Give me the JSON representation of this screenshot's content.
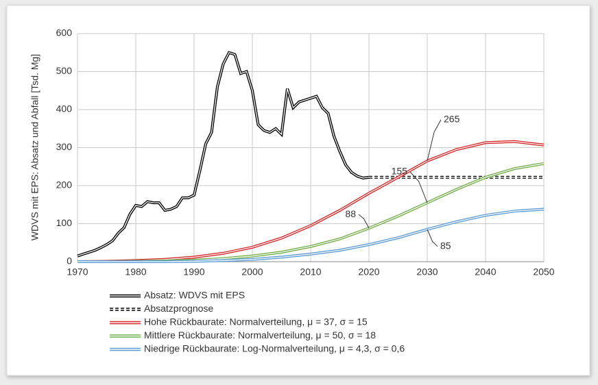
{
  "chart_data": {
    "type": "line",
    "y_label": "WDVS mit EPS: Absatz und Abfall [Tsd. Mg]",
    "xlim": [
      1970,
      2050
    ],
    "xticks": [
      1970,
      1980,
      1990,
      2000,
      2010,
      2020,
      2030,
      2040,
      2050
    ],
    "ylim": [
      0,
      600
    ],
    "yticks": [
      0,
      100,
      200,
      300,
      400,
      500,
      600
    ],
    "grid": true,
    "series": [
      {
        "name": "Absatz: WDVS mit EPS",
        "color": "#000000",
        "style": "solid",
        "x": [
          1970,
          1971,
          1972,
          1973,
          1974,
          1975,
          1976,
          1977,
          1978,
          1979,
          1980,
          1981,
          1982,
          1983,
          1984,
          1985,
          1986,
          1987,
          1988,
          1989,
          1990,
          1991,
          1992,
          1993,
          1994,
          1995,
          1996,
          1997,
          1998,
          1999,
          2000,
          2001,
          2002,
          2003,
          2004,
          2005,
          2006,
          2007,
          2008,
          2009,
          2010,
          2011,
          2012,
          2013,
          2014,
          2015,
          2016,
          2017,
          2018,
          2019,
          2020
        ],
        "values": [
          15,
          20,
          25,
          30,
          37,
          45,
          55,
          75,
          90,
          125,
          148,
          145,
          158,
          155,
          155,
          135,
          138,
          145,
          168,
          168,
          175,
          240,
          310,
          340,
          460,
          520,
          550,
          545,
          495,
          500,
          450,
          360,
          345,
          340,
          350,
          335,
          455,
          405,
          420,
          425,
          430,
          435,
          405,
          390,
          330,
          290,
          255,
          235,
          225,
          220,
          222
        ]
      },
      {
        "name": "Absatzprognose",
        "color": "#000000",
        "style": "dashed",
        "x": [
          2020,
          2050
        ],
        "values": [
          222,
          222
        ]
      },
      {
        "name": "Hohe Rückbaurate: Normalverteilung, μ = 37, σ = 15",
        "color": "#d62728",
        "style": "solid",
        "x": [
          1970,
          1975,
          1980,
          1985,
          1990,
          1995,
          2000,
          2005,
          2010,
          2015,
          2020,
          2025,
          2030,
          2035,
          2040,
          2045,
          2050
        ],
        "values": [
          0,
          1,
          3,
          6,
          12,
          22,
          38,
          62,
          95,
          135,
          180,
          222,
          265,
          295,
          313,
          316,
          307
        ]
      },
      {
        "name": "Mittlere Rückbaurate: Normalverteilung, μ = 50, σ = 18",
        "color": "#70ad47",
        "style": "solid",
        "x": [
          1970,
          1975,
          1980,
          1985,
          1990,
          1995,
          2000,
          2005,
          2010,
          2015,
          2020,
          2025,
          2030,
          2035,
          2040,
          2045,
          2050
        ],
        "values": [
          0,
          0,
          1,
          2,
          4,
          8,
          15,
          25,
          40,
          60,
          88,
          120,
          155,
          190,
          222,
          245,
          258
        ]
      },
      {
        "name": "Niedrige Rückbaurate: Log-Normalverteilung, μ = 4,3, σ = 0,6",
        "color": "#5b9bd5",
        "style": "solid",
        "x": [
          1970,
          1975,
          1980,
          1985,
          1990,
          1995,
          2000,
          2005,
          2010,
          2015,
          2020,
          2025,
          2030,
          2035,
          2040,
          2045,
          2050
        ],
        "values": [
          0,
          0,
          0,
          0,
          1,
          3,
          6,
          12,
          20,
          30,
          45,
          63,
          85,
          105,
          122,
          133,
          138
        ]
      }
    ],
    "annotations": [
      {
        "label": "265",
        "series": 2,
        "x": 2030
      },
      {
        "label": "155",
        "series": 3,
        "x": 2030
      },
      {
        "label": "88",
        "series": 3,
        "x": 2020
      },
      {
        "label": "85",
        "series": 4,
        "x": 2030
      }
    ]
  }
}
